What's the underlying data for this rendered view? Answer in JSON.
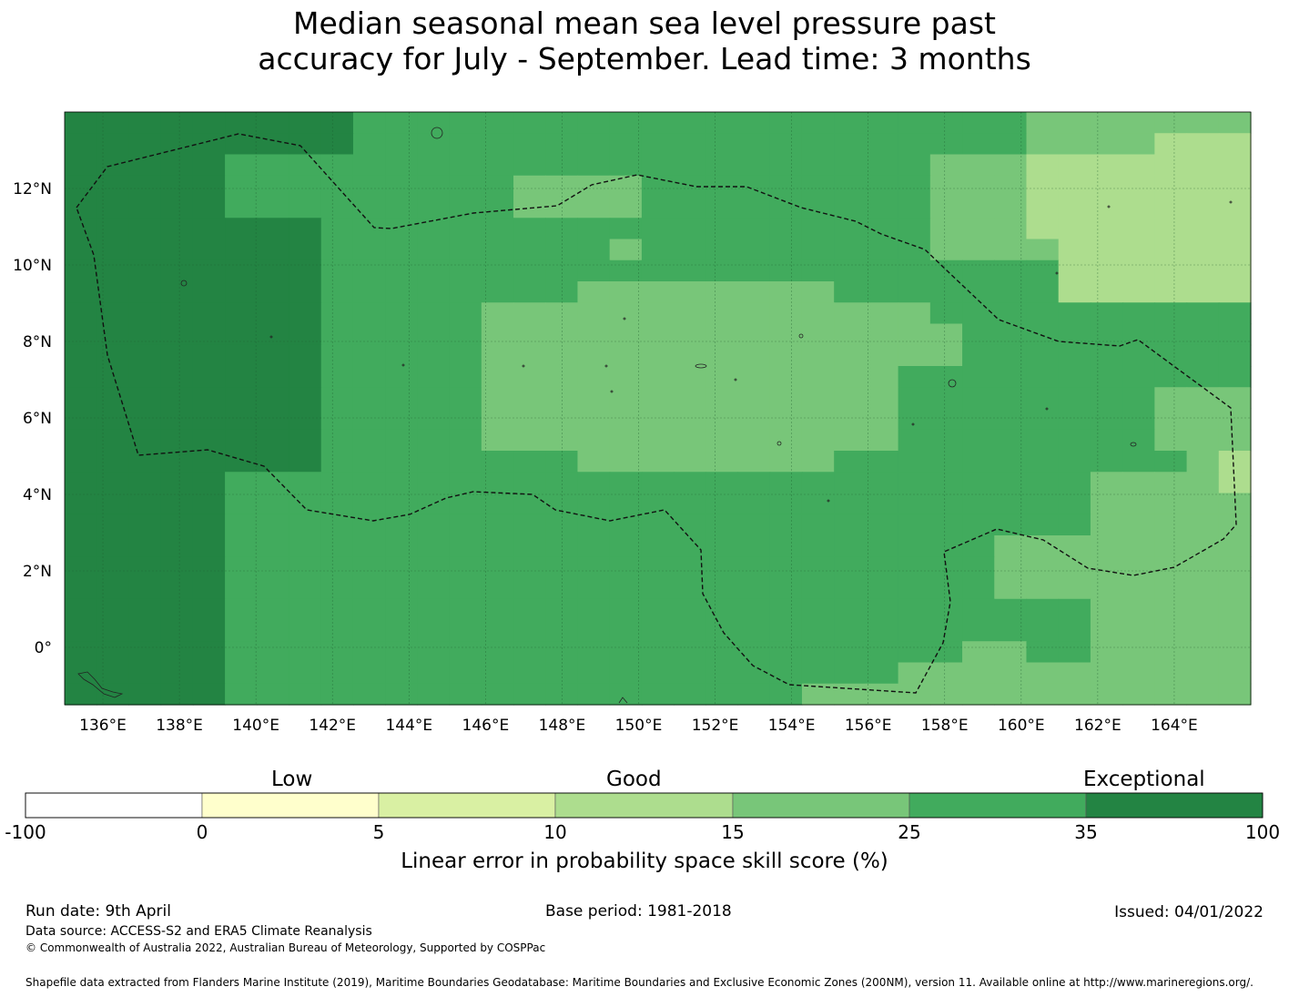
{
  "title": {
    "line1": "Median seasonal mean sea level pressure past",
    "line2": "accuracy for July - September. Lead time: 3 months"
  },
  "map": {
    "lon_range": [
      135,
      166
    ],
    "lat_range": [
      -1.5,
      14
    ],
    "lon_ticks": [
      "136°E",
      "138°E",
      "140°E",
      "142°E",
      "144°E",
      "146°E",
      "148°E",
      "150°E",
      "152°E",
      "154°E",
      "156°E",
      "158°E",
      "160°E",
      "162°E",
      "164°E"
    ],
    "lat_ticks": [
      "12°N",
      "10°N",
      "8°N",
      "6°N",
      "4°N",
      "2°N",
      "0°"
    ],
    "gridlines": true,
    "boundary": "EEZ dashed outline"
  },
  "colorbar": {
    "categories": [
      "Low",
      "Good",
      "Exceptional"
    ],
    "ticks": [
      "-100",
      "0",
      "5",
      "10",
      "15",
      "25",
      "35",
      "100"
    ],
    "colors": [
      "#ffffff",
      "#ffffcc",
      "#d9f0a3",
      "#addd8e",
      "#78c679",
      "#41ab5d",
      "#238443"
    ],
    "label": "Linear error in probability space skill score (%)"
  },
  "footer": {
    "run_date": "Run date: 9th April",
    "base_period": "Base period: 1981-2018",
    "issued": "Issued: 04/01/2022",
    "data_source": "Data source: ACCESS-S2 and ERA5 Climate Reanalysis",
    "copyright": "© Commonwealth of Australia 2022, Australian Bureau of Meteorology, Supported by COSPPac",
    "shapefile": "Shapefile data extracted from Flanders Marine Institute (2019), Maritime Boundaries Geodatabase: Maritime Boundaries and Exclusive Economic Zones (200NM), version 11. Available online at http://www.marineregions.org/."
  }
}
